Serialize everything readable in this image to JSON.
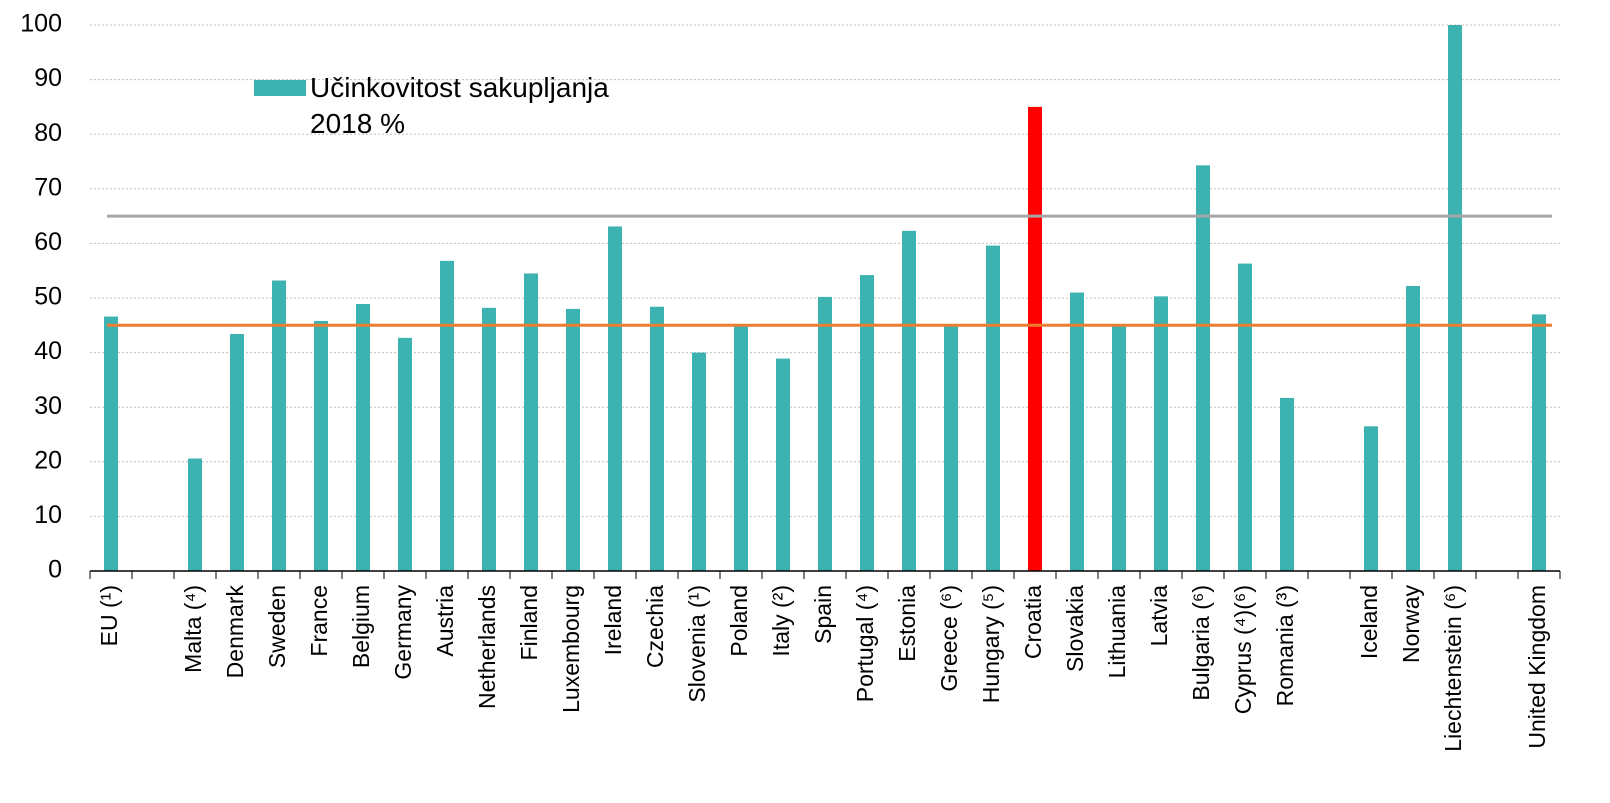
{
  "chart_data": {
    "type": "bar",
    "categories": [
      "EU (¹)",
      null,
      "Malta (⁴)",
      "Denmark",
      "Sweden",
      "France",
      "Belgium",
      "Germany",
      "Austria",
      "Netherlands",
      "Finland",
      "Luxembourg",
      "Ireland",
      "Czechia",
      "Slovenia (¹)",
      "Poland",
      "Italy (²)",
      "Spain",
      "Portugal (⁴)",
      "Estonia",
      "Greece (⁶)",
      "Hungary (⁵)",
      "Croatia",
      "Slovakia",
      "Lithuania",
      "Latvia",
      "Bulgaria (⁶)",
      "Cyprus (⁴)(⁶)",
      "Romania (³)",
      null,
      "Iceland",
      "Norway",
      "Liechtenstein (⁶)",
      null,
      "United Kingdom"
    ],
    "series": [
      {
        "name": "Učinkovitost sakupljanja 2018 %",
        "color": "#3cb3b0",
        "values": [
          46.6,
          null,
          20.6,
          43.4,
          53.2,
          45.8,
          48.9,
          42.7,
          56.8,
          48.2,
          54.5,
          48,
          63.1,
          48.4,
          40,
          44.9,
          38.9,
          50.2,
          54.2,
          62.3,
          45,
          59.6,
          85,
          51,
          44.9,
          50.3,
          74.3,
          56.3,
          31.7,
          null,
          26.5,
          52.2,
          100,
          null,
          47
        ]
      }
    ],
    "highlight_category": "Croatia",
    "highlight_color": "#ff0000",
    "reference_lines": [
      {
        "value": 65,
        "color": "#a6a6a6"
      },
      {
        "value": 45,
        "color": "#ed7d31"
      }
    ],
    "ylim": [
      0,
      100
    ],
    "yticks": [
      0,
      10,
      20,
      30,
      40,
      50,
      60,
      70,
      80,
      90,
      100
    ],
    "grid": true
  }
}
